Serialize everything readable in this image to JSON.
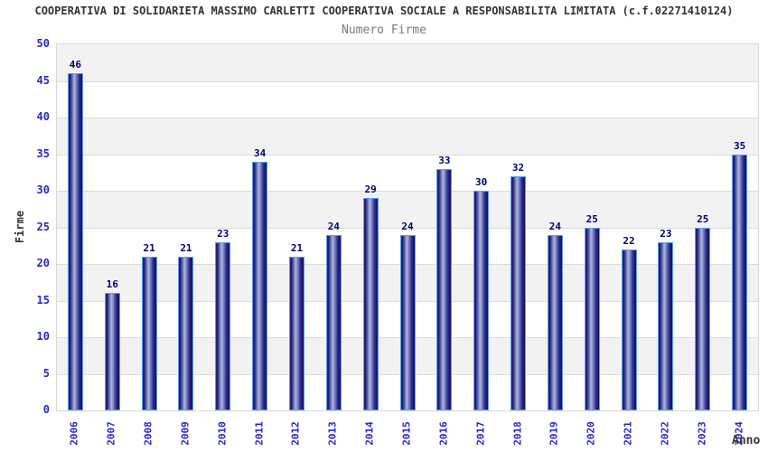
{
  "chart_data": {
    "type": "bar",
    "title": "COOPERATIVA DI SOLIDARIETA MASSIMO CARLETTI COOPERATIVA SOCIALE A RESPONSABILITA LIMITATA (c.f.02271410124)",
    "subtitle": "Numero Firme",
    "xlabel": "Anno",
    "ylabel": "Firme",
    "categories": [
      "2006",
      "2007",
      "2008",
      "2009",
      "2010",
      "2011",
      "2012",
      "2013",
      "2014",
      "2015",
      "2016",
      "2017",
      "2018",
      "2019",
      "2020",
      "2021",
      "2022",
      "2023",
      "2024"
    ],
    "values": [
      46,
      16,
      21,
      21,
      23,
      34,
      21,
      24,
      29,
      24,
      33,
      30,
      32,
      24,
      25,
      22,
      23,
      25,
      35
    ],
    "ylim": [
      0,
      50
    ],
    "ytick_step": 5,
    "legend": "none",
    "grid": "horizontal alternating bands every 5 units",
    "colors": {
      "bar_border": "#5e9cf5",
      "bar_dark": "#16166b",
      "bar_light": "#b0b7e0",
      "value_label": "#00006b",
      "tick_label": "#2525cc",
      "axis_title": "#333333",
      "subtitle": "#7a7a7a",
      "band_gray": "#f2f2f2",
      "gridline": "#dcdcdc",
      "plot_border": "#d8d8d8"
    }
  }
}
